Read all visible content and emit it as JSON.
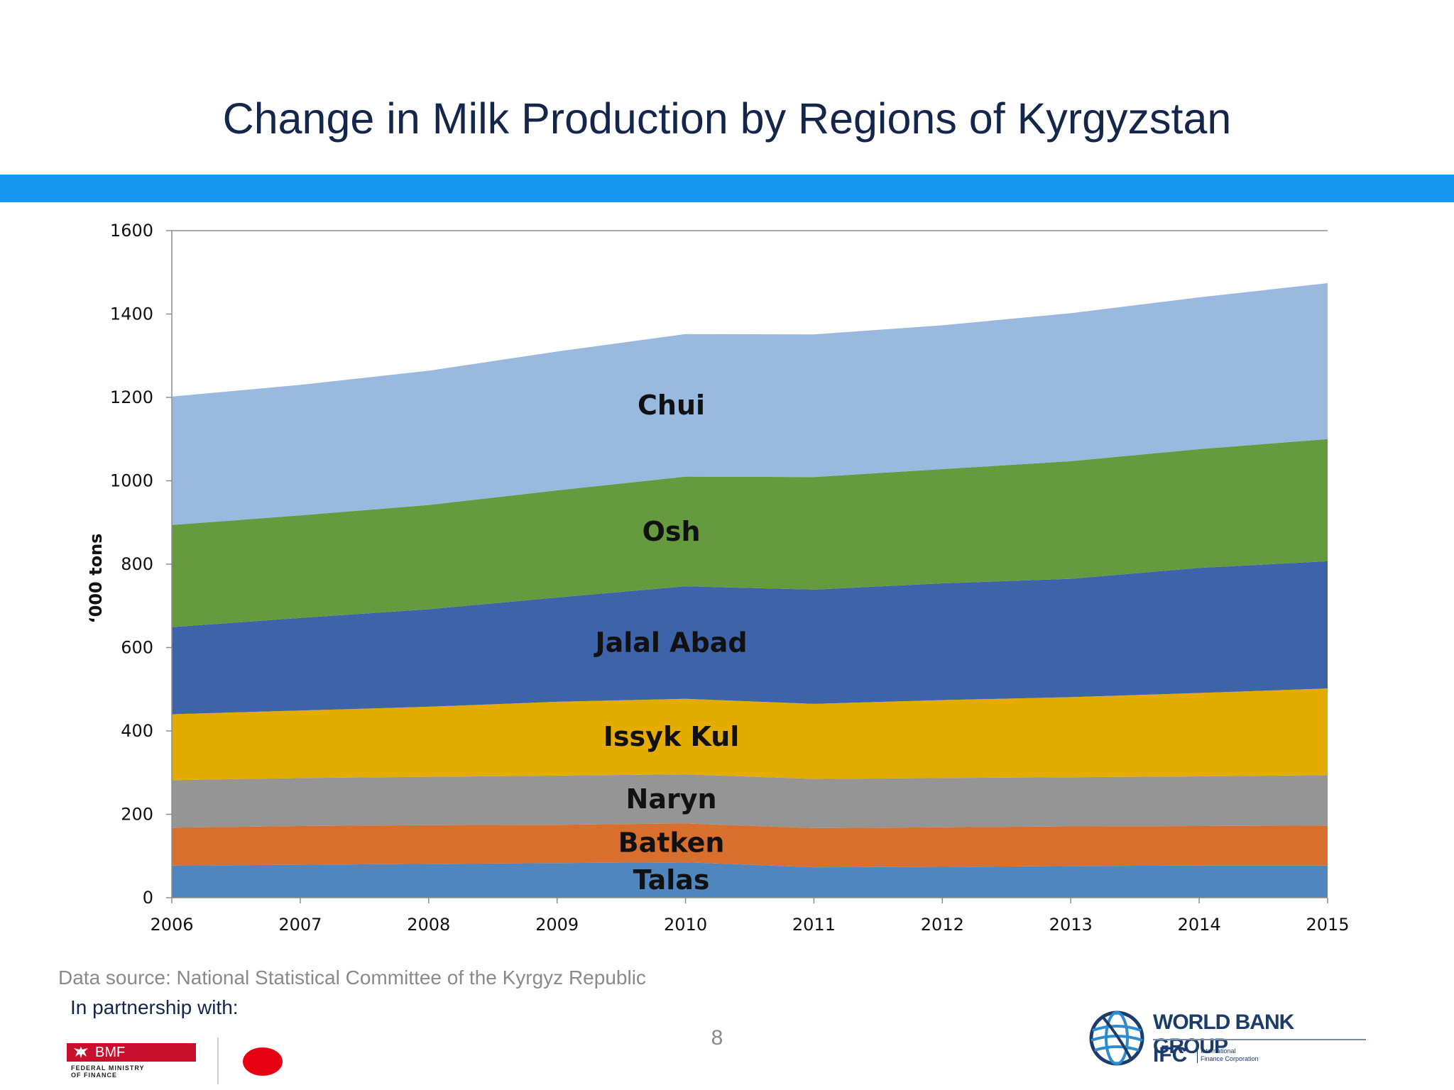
{
  "slide": {
    "title": "Change in Milk Production by Regions of Kyrgyzstan",
    "source": "Data source: National Statistical Committee of the Kyrgyz Republic",
    "partnership": "In partnership with:",
    "page_number": "8"
  },
  "logos": {
    "bmf_name": "BMF",
    "bmf_sub_line1": "FEDERAL MINISTRY",
    "bmf_sub_line2": "OF FINANCE",
    "wbg_name": "WORLD BANK GROUP",
    "ifc_abbr": "IFC",
    "ifc_line1": "International",
    "ifc_line2": "Finance Corporation"
  },
  "chart_data": {
    "type": "area",
    "stacked": true,
    "title": "",
    "xlabel": "",
    "ylabel": "‘000 tons",
    "ylim": [
      0,
      1600
    ],
    "yticks": [
      0,
      200,
      400,
      600,
      800,
      1000,
      1200,
      1400,
      1600
    ],
    "x": [
      2006,
      2007,
      2008,
      2009,
      2010,
      2011,
      2012,
      2013,
      2014,
      2015
    ],
    "series": [
      {
        "name": "Talas",
        "color": "#4f86bd",
        "values": [
          77,
          79,
          81,
          83,
          85,
          73,
          74,
          76,
          77,
          77
        ]
      },
      {
        "name": "Batken",
        "color": "#d86f2e",
        "values": [
          91,
          93,
          93,
          92,
          93,
          94,
          95,
          95,
          95,
          96
        ]
      },
      {
        "name": "Naryn",
        "color": "#959595",
        "values": [
          114,
          115,
          116,
          118,
          118,
          118,
          118,
          118,
          119,
          121
        ]
      },
      {
        "name": "Issyk Kul",
        "color": "#e4ab00",
        "values": [
          158,
          162,
          168,
          177,
          181,
          180,
          187,
          192,
          200,
          208
        ]
      },
      {
        "name": "Jalal Abad",
        "color": "#3d63ab",
        "values": [
          209,
          222,
          234,
          250,
          270,
          274,
          280,
          284,
          300,
          305
        ]
      },
      {
        "name": "Osh",
        "color": "#659a3e",
        "values": [
          245,
          246,
          250,
          257,
          263,
          270,
          274,
          282,
          285,
          293
        ]
      },
      {
        "name": "Chui",
        "color": "#99b9df",
        "values": [
          308,
          313,
          322,
          333,
          342,
          342,
          345,
          355,
          364,
          374
        ]
      }
    ],
    "label_year": 2010,
    "label_color": "#111111"
  }
}
